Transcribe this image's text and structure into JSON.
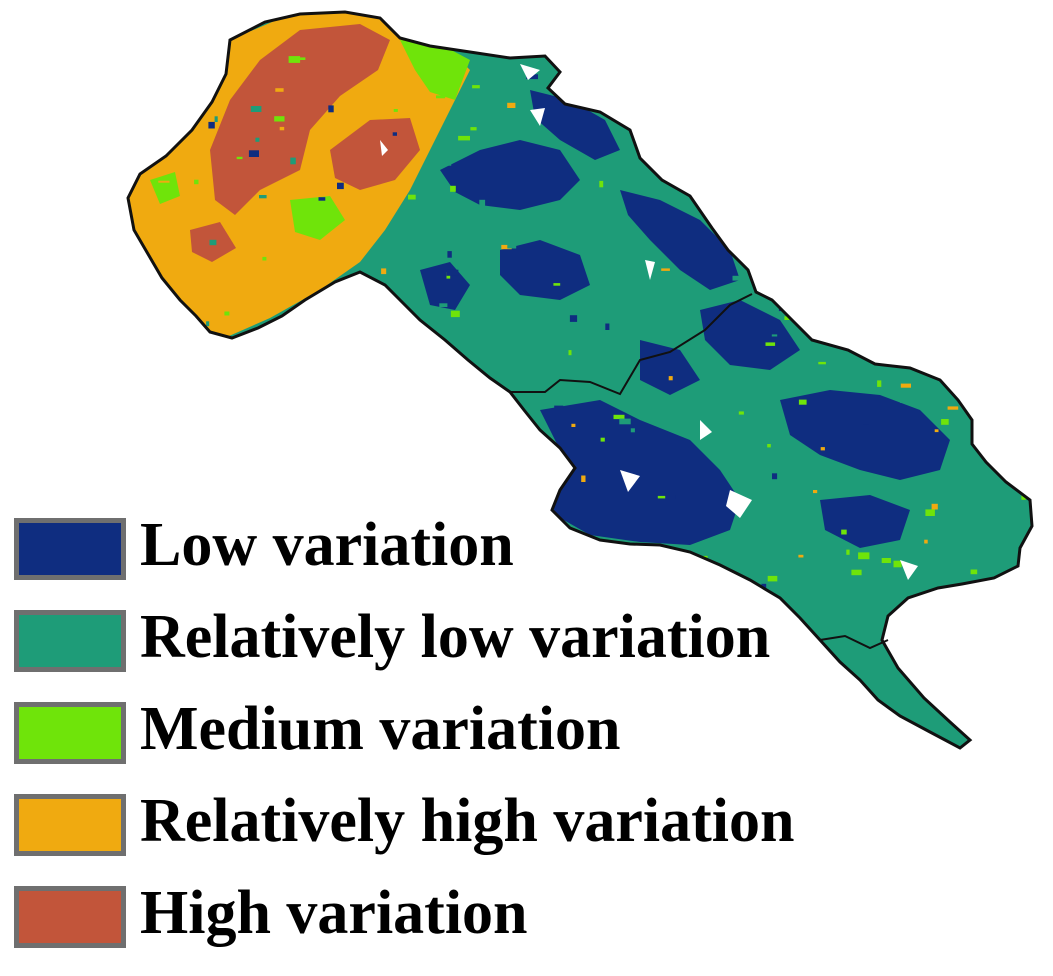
{
  "legend": {
    "items": [
      {
        "label": "Low variation",
        "color": "#0f2d80"
      },
      {
        "label": "Relatively low variation",
        "color": "#1e9c78"
      },
      {
        "label": "Medium variation",
        "color": "#6fe40a"
      },
      {
        "label": "Relatively high variation",
        "color": "#f0aa10"
      },
      {
        "label": "High variation",
        "color": "#c2553a"
      }
    ]
  },
  "map": {
    "background_color": "#ffffff",
    "boundary_color": "#111111",
    "gap_color": "#ffffff"
  }
}
